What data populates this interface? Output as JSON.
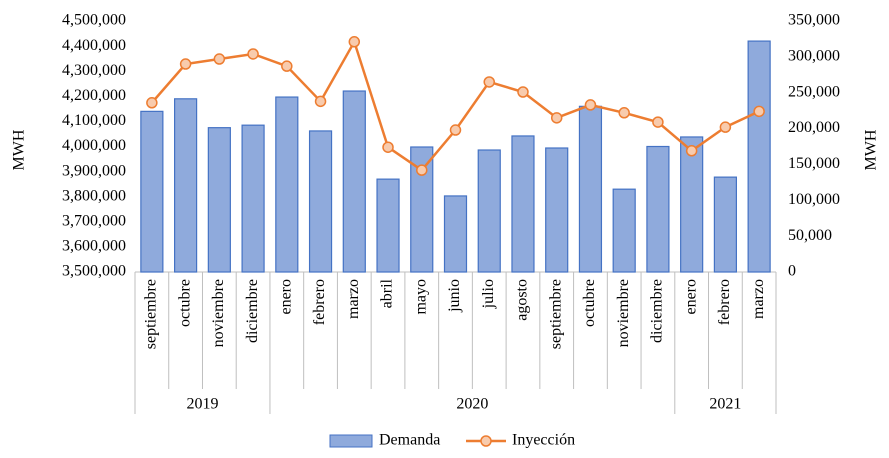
{
  "chart_data": {
    "type": "bar-line",
    "y_label": "MWH",
    "y2_label": "MWH",
    "category_groups": [
      {
        "label": "2019",
        "categories": [
          "septiembre",
          "octubre",
          "noviembre",
          "diciembre"
        ]
      },
      {
        "label": "2020",
        "categories": [
          "enero",
          "febrero",
          "marzo",
          "abril",
          "mayo",
          "junio",
          "julio",
          "agosto",
          "septiembre",
          "octubre",
          "noviembre",
          "diciembre"
        ]
      },
      {
        "label": "2021",
        "categories": [
          "enero",
          "febrero",
          "marzo"
        ]
      }
    ],
    "series": [
      {
        "name": "Demanda",
        "type": "bar",
        "color": "#8faadc",
        "values": [
          4140000,
          4190000,
          4075000,
          4085000,
          4197000,
          4062000,
          4221000,
          3870000,
          3998000,
          3803000,
          3986000,
          4042000,
          3994000,
          4160000,
          3830000,
          4000000,
          4038000,
          3878000,
          4420000
        ]
      },
      {
        "name": "Inyección",
        "type": "line",
        "axis": "y2",
        "color": "#ed7d31",
        "values": [
          236000,
          290000,
          297000,
          304000,
          287000,
          238000,
          321000,
          174000,
          142000,
          198000,
          265000,
          251000,
          215000,
          233000,
          222000,
          209000,
          169000,
          202000,
          224000
        ]
      }
    ],
    "ylim": [
      3500000,
      4500000
    ],
    "yticks": [
      {
        "value": 3500000,
        "label": "3,500,000"
      },
      {
        "value": 3600000,
        "label": "3,600,000"
      },
      {
        "value": 3700000,
        "label": "3,700,000"
      },
      {
        "value": 3800000,
        "label": "3,800,000"
      },
      {
        "value": 3900000,
        "label": "3,900,000"
      },
      {
        "value": 4000000,
        "label": "4,000,000"
      },
      {
        "value": 4100000,
        "label": "4,100,000"
      },
      {
        "value": 4200000,
        "label": "4,200,000"
      },
      {
        "value": 4300000,
        "label": "4,300,000"
      },
      {
        "value": 4400000,
        "label": "4,400,000"
      },
      {
        "value": 4500000,
        "label": "4,500,000"
      }
    ],
    "y2lim": [
      0,
      350000
    ],
    "y2ticks": [
      0,
      {
        "value": 50000,
        "label": "50,000"
      },
      {
        "value": 100000,
        "label": "100,000"
      },
      {
        "value": 150000,
        "label": "150,000"
      },
      {
        "value": 200000,
        "label": "200,000"
      },
      {
        "value": 250000,
        "label": "250,000"
      },
      {
        "value": 300000,
        "label": "300,000"
      },
      {
        "value": 350000,
        "label": "350,000"
      }
    ],
    "grid": false,
    "legend": "bottom"
  }
}
